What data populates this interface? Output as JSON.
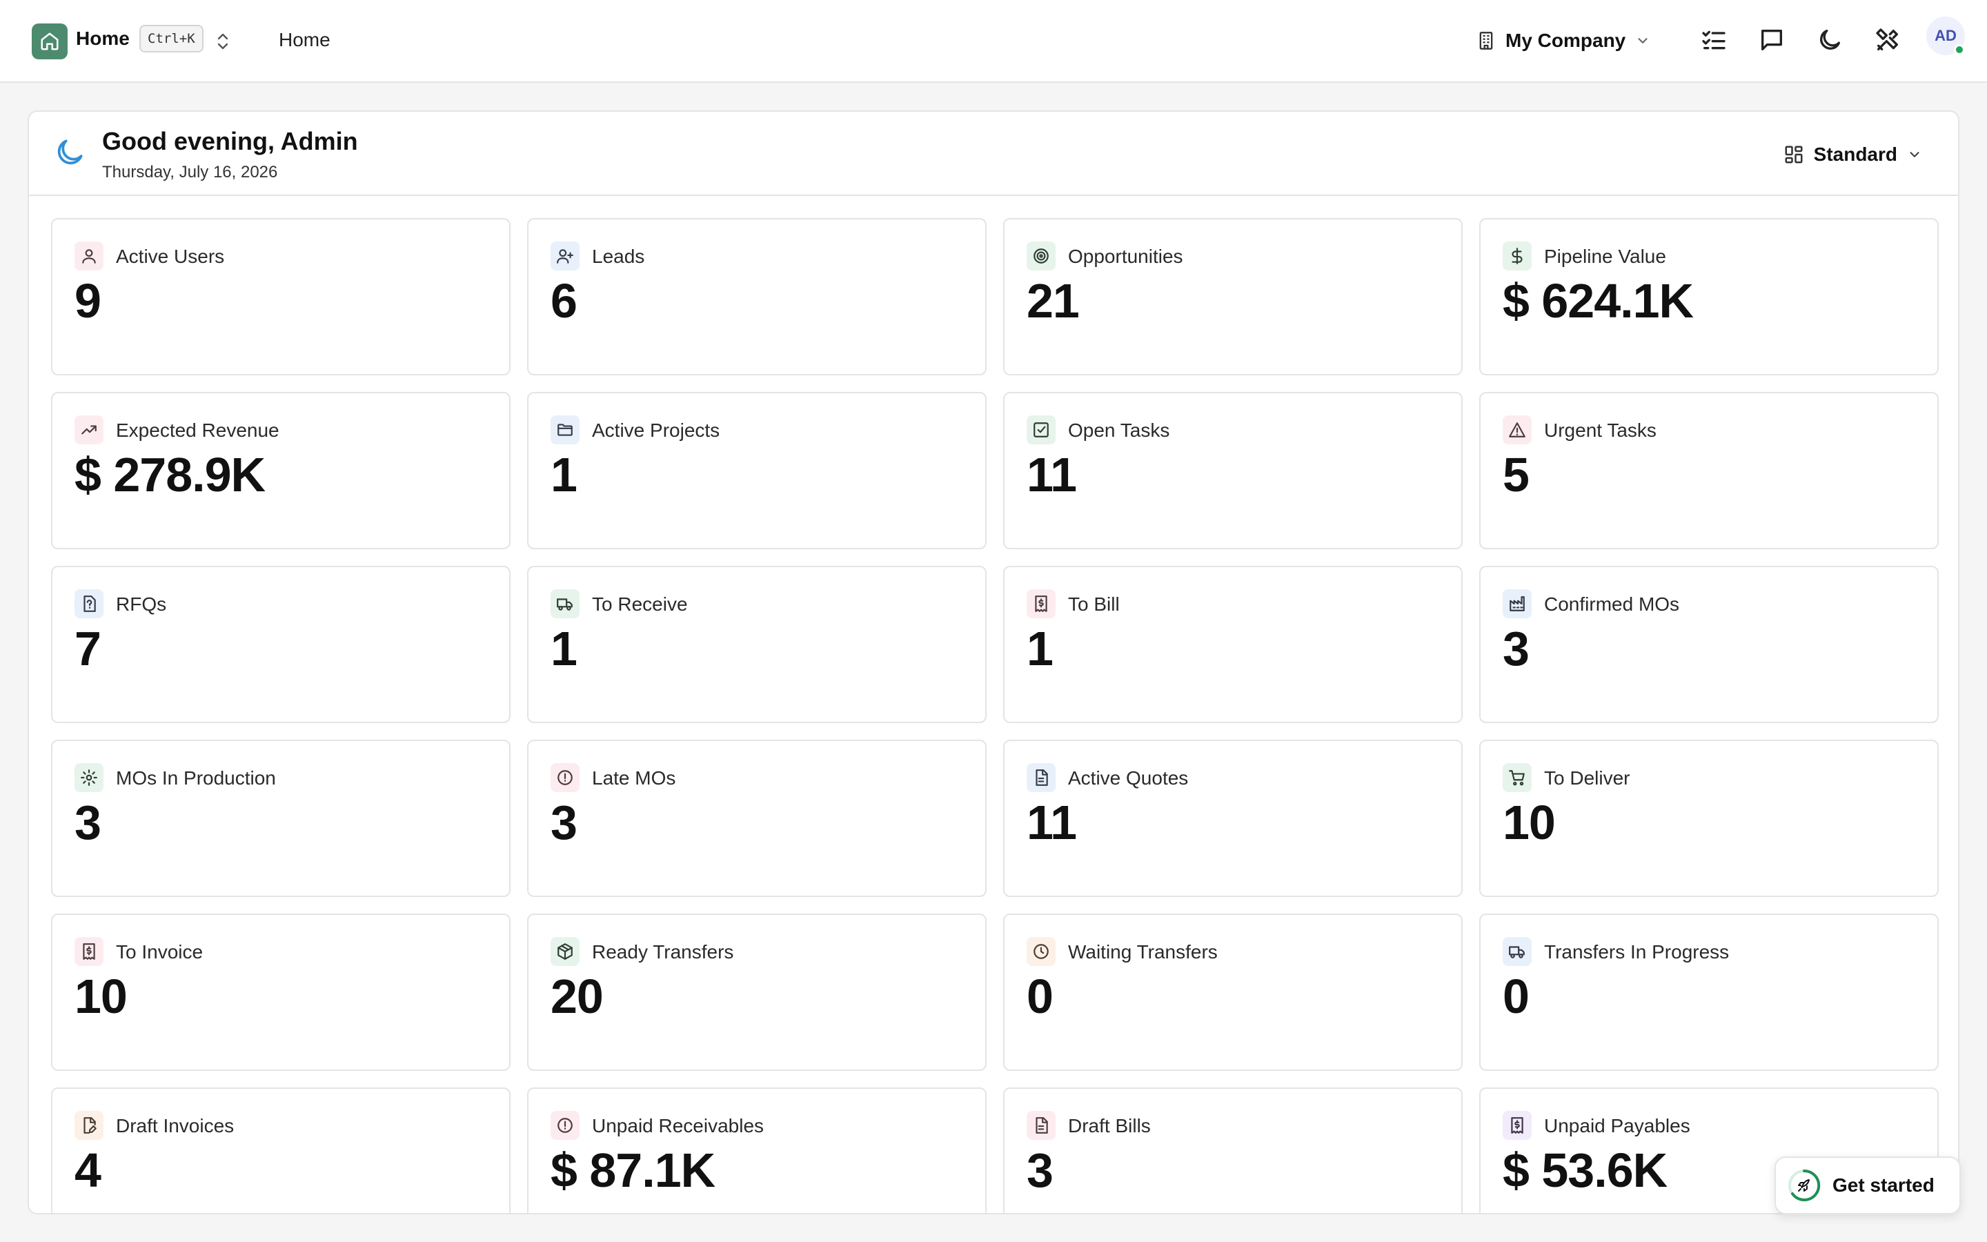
{
  "topbar": {
    "app_title": "Home",
    "shortcut": "Ctrl+K",
    "breadcrumb": "Home",
    "company": "My Company",
    "user_initials": "AD",
    "icons": [
      "home-icon",
      "switch-icon",
      "building-icon",
      "chevron-down-icon",
      "tasks-icon",
      "chat-icon",
      "moon-icon",
      "settings-icon"
    ]
  },
  "header": {
    "greeting": "Good evening, Admin",
    "date": "Thursday, July 16, 2026",
    "view_label": "Standard"
  },
  "kpis": [
    {
      "label": "Active Users",
      "value": "9",
      "icon": "user-icon",
      "tint": "rose"
    },
    {
      "label": "Leads",
      "value": "6",
      "icon": "user-plus-icon",
      "tint": "blue"
    },
    {
      "label": "Opportunities",
      "value": "21",
      "icon": "target-icon",
      "tint": "green"
    },
    {
      "label": "Pipeline Value",
      "value": "$ 624.1K",
      "icon": "dollar-icon",
      "tint": "green"
    },
    {
      "label": "Expected Revenue",
      "value": "$ 278.9K",
      "icon": "trend-up-icon",
      "tint": "rose"
    },
    {
      "label": "Active Projects",
      "value": "1",
      "icon": "folder-icon",
      "tint": "blue"
    },
    {
      "label": "Open Tasks",
      "value": "11",
      "icon": "check-square-icon",
      "tint": "green"
    },
    {
      "label": "Urgent Tasks",
      "value": "5",
      "icon": "alert-triangle-icon",
      "tint": "rose"
    },
    {
      "label": "RFQs",
      "value": "7",
      "icon": "file-question-icon",
      "tint": "blue"
    },
    {
      "label": "To Receive",
      "value": "1",
      "icon": "truck-icon",
      "tint": "green"
    },
    {
      "label": "To Bill",
      "value": "1",
      "icon": "receipt-icon",
      "tint": "rose"
    },
    {
      "label": "Confirmed MOs",
      "value": "3",
      "icon": "factory-icon",
      "tint": "blue"
    },
    {
      "label": "MOs In Production",
      "value": "3",
      "icon": "cog-icon",
      "tint": "green"
    },
    {
      "label": "Late MOs",
      "value": "3",
      "icon": "alert-circle-icon",
      "tint": "rose"
    },
    {
      "label": "Active Quotes",
      "value": "11",
      "icon": "file-text-icon",
      "tint": "blue"
    },
    {
      "label": "To Deliver",
      "value": "10",
      "icon": "cart-icon",
      "tint": "green"
    },
    {
      "label": "To Invoice",
      "value": "10",
      "icon": "receipt-icon",
      "tint": "rose"
    },
    {
      "label": "Ready Transfers",
      "value": "20",
      "icon": "package-icon",
      "tint": "green"
    },
    {
      "label": "Waiting Transfers",
      "value": "0",
      "icon": "clock-icon",
      "tint": "amber"
    },
    {
      "label": "Transfers In Progress",
      "value": "0",
      "icon": "truck-icon",
      "tint": "blue"
    },
    {
      "label": "Draft Invoices",
      "value": "4",
      "icon": "file-pen-icon",
      "tint": "amber"
    },
    {
      "label": "Unpaid Receivables",
      "value": "$ 87.1K",
      "icon": "alert-circle-icon",
      "tint": "rose"
    },
    {
      "label": "Draft Bills",
      "value": "3",
      "icon": "file-text-icon",
      "tint": "rose"
    },
    {
      "label": "Unpaid Payables",
      "value": "$ 53.6K",
      "icon": "receipt-icon",
      "tint": "purple"
    }
  ],
  "get_started": {
    "label": "Get started"
  },
  "colors": {
    "brand": "#4c8b6e",
    "accent_moon": "#2f8fd6",
    "status_online": "#22a35a"
  }
}
